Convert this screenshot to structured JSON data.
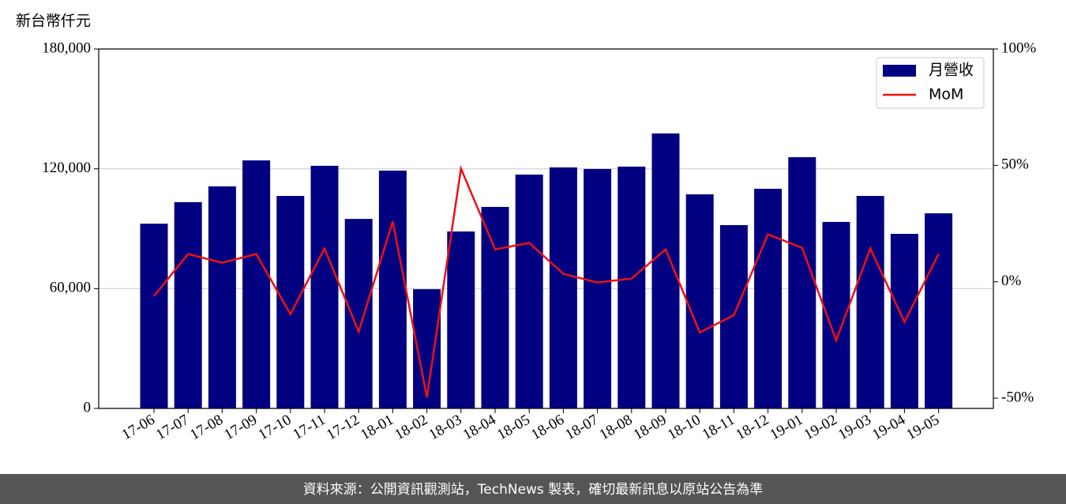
{
  "chart_data": {
    "type": "bar",
    "y_label": "新台幣仟元",
    "source": "資料來源：公開資訊觀測站，TechNews 製表，確切最新訊息以原站公告為準",
    "categories": [
      "17-06",
      "17-07",
      "17-08",
      "17-09",
      "17-10",
      "17-11",
      "17-12",
      "18-01",
      "18-02",
      "18-03",
      "18-04",
      "18-05",
      "18-06",
      "18-07",
      "18-08",
      "18-09",
      "18-10",
      "18-11",
      "18-12",
      "19-01",
      "19-02",
      "19-03",
      "19-04",
      "19-05"
    ],
    "series": [
      {
        "name": "月營收",
        "type": "bar",
        "color": "#000080",
        "values": [
          92500,
          103300,
          111200,
          124200,
          106400,
          121500,
          94900,
          119100,
          59700,
          88600,
          100900,
          117100,
          120700,
          119900,
          121100,
          137700,
          107200,
          91800,
          110000,
          125800,
          93400,
          106400,
          87400,
          97700
        ]
      },
      {
        "name": "MoM",
        "type": "line",
        "color": "#ee1111",
        "axis": "y2",
        "values": [
          -6.1,
          11.9,
          8.2,
          11.9,
          -13.9,
          14.3,
          -21.4,
          25.9,
          -49.7,
          48.6,
          13.9,
          16.7,
          3.4,
          -0.3,
          1.4,
          13.9,
          -21.8,
          -14.3,
          20.4,
          14.6,
          -25.2,
          14.3,
          -17.3,
          11.9
        ]
      }
    ],
    "ylim": [
      0,
      180000
    ],
    "yticks": [
      0,
      {
        "value": 60000,
        "label": "60,000"
      },
      {
        "value": 120000,
        "label": "120,000"
      },
      {
        "value": 180000,
        "label": "180,000"
      }
    ],
    "y2lim": [
      -54.4,
      100
    ],
    "y2ticks": [
      {
        "value": -50,
        "label": "-50%"
      },
      {
        "value": 0,
        "label": "0%"
      },
      {
        "value": 50,
        "label": "50%"
      },
      {
        "value": 100,
        "label": "100%"
      }
    ],
    "grid": true,
    "legend": "upper right"
  }
}
